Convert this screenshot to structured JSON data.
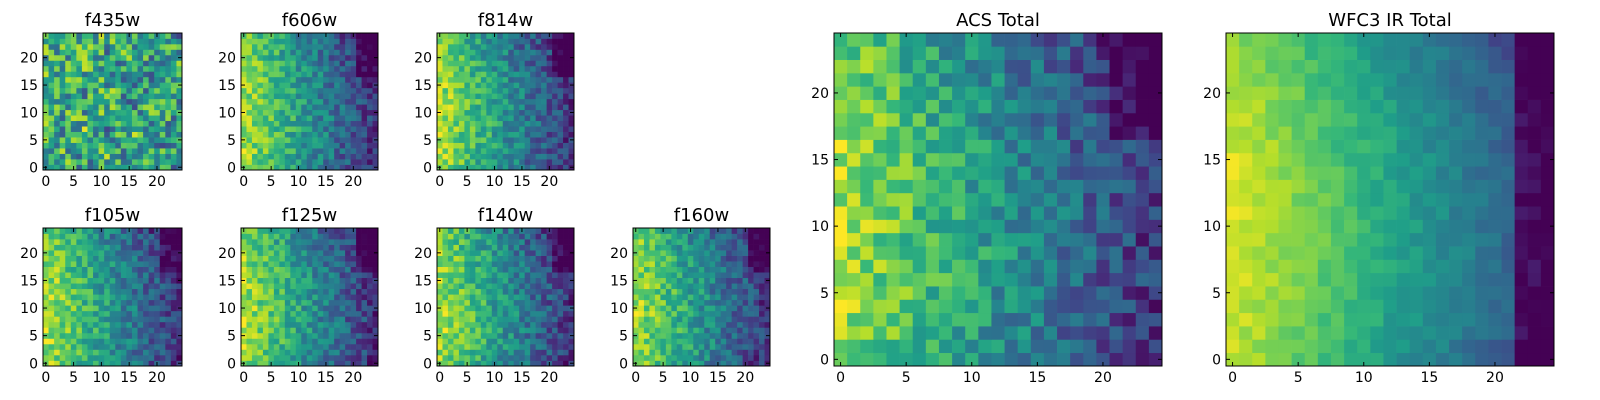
{
  "figure": {
    "description_free": true
  },
  "chart_data": [
    {
      "type": "heatmap",
      "title": "f435w",
      "grid_size": 25,
      "colormap": "viridis",
      "xticks": [
        "0",
        "5",
        "10",
        "15",
        "20"
      ],
      "yticks": [
        "0",
        "5",
        "10",
        "15",
        "20"
      ],
      "xlim": [
        0,
        24
      ],
      "ylim": [
        0,
        24
      ],
      "pattern": "noisy",
      "seed": 11
    },
    {
      "type": "heatmap",
      "title": "f606w",
      "grid_size": 25,
      "colormap": "viridis",
      "xticks": [
        "0",
        "5",
        "10",
        "15",
        "20"
      ],
      "yticks": [
        "0",
        "5",
        "10",
        "15",
        "20"
      ],
      "xlim": [
        0,
        24
      ],
      "ylim": [
        0,
        24
      ],
      "pattern": "gradient-left",
      "seed": 23
    },
    {
      "type": "heatmap",
      "title": "f814w",
      "grid_size": 25,
      "colormap": "viridis",
      "xticks": [
        "0",
        "5",
        "10",
        "15",
        "20"
      ],
      "yticks": [
        "0",
        "5",
        "10",
        "15",
        "20"
      ],
      "xlim": [
        0,
        24
      ],
      "ylim": [
        0,
        24
      ],
      "pattern": "gradient-left",
      "seed": 37
    },
    {
      "type": "heatmap",
      "title": "f105w",
      "grid_size": 25,
      "colormap": "viridis",
      "xticks": [
        "0",
        "5",
        "10",
        "15",
        "20"
      ],
      "yticks": [
        "0",
        "5",
        "10",
        "15",
        "20"
      ],
      "xlim": [
        0,
        24
      ],
      "ylim": [
        0,
        24
      ],
      "pattern": "gradient-left",
      "seed": 41
    },
    {
      "type": "heatmap",
      "title": "f125w",
      "grid_size": 25,
      "colormap": "viridis",
      "xticks": [
        "0",
        "5",
        "10",
        "15",
        "20"
      ],
      "yticks": [
        "0",
        "5",
        "10",
        "15",
        "20"
      ],
      "xlim": [
        0,
        24
      ],
      "ylim": [
        0,
        24
      ],
      "pattern": "gradient-left",
      "seed": 53
    },
    {
      "type": "heatmap",
      "title": "f140w",
      "grid_size": 25,
      "colormap": "viridis",
      "xticks": [
        "0",
        "5",
        "10",
        "15",
        "20"
      ],
      "yticks": [
        "0",
        "5",
        "10",
        "15",
        "20"
      ],
      "xlim": [
        0,
        24
      ],
      "ylim": [
        0,
        24
      ],
      "pattern": "gradient-left",
      "seed": 67
    },
    {
      "type": "heatmap",
      "title": "f160w",
      "grid_size": 25,
      "colormap": "viridis",
      "xticks": [
        "0",
        "5",
        "10",
        "15",
        "20"
      ],
      "yticks": [
        "0",
        "5",
        "10",
        "15",
        "20"
      ],
      "xlim": [
        0,
        24
      ],
      "ylim": [
        0,
        24
      ],
      "pattern": "gradient-left",
      "seed": 79
    },
    {
      "type": "heatmap",
      "title": "ACS Total",
      "grid_size": 25,
      "colormap": "viridis",
      "xticks": [
        "0",
        "5",
        "10",
        "15",
        "20"
      ],
      "yticks": [
        "0",
        "5",
        "10",
        "15",
        "20"
      ],
      "xlim": [
        0,
        24
      ],
      "ylim": [
        0,
        24
      ],
      "pattern": "gradient-left",
      "seed": 97
    },
    {
      "type": "heatmap",
      "title": "WFC3 IR Total",
      "grid_size": 25,
      "colormap": "viridis",
      "xticks": [
        "0",
        "5",
        "10",
        "15",
        "20"
      ],
      "yticks": [
        "0",
        "5",
        "10",
        "15",
        "20"
      ],
      "xlim": [
        0,
        24
      ],
      "ylim": [
        0,
        24
      ],
      "pattern": "smooth-gradient-left",
      "seed": 101
    }
  ],
  "colors": {
    "viridis_stops": [
      "#440154",
      "#482878",
      "#3e4989",
      "#31688e",
      "#26828e",
      "#1f9e89",
      "#35b779",
      "#6ece58",
      "#b5de2b",
      "#fde725"
    ]
  }
}
